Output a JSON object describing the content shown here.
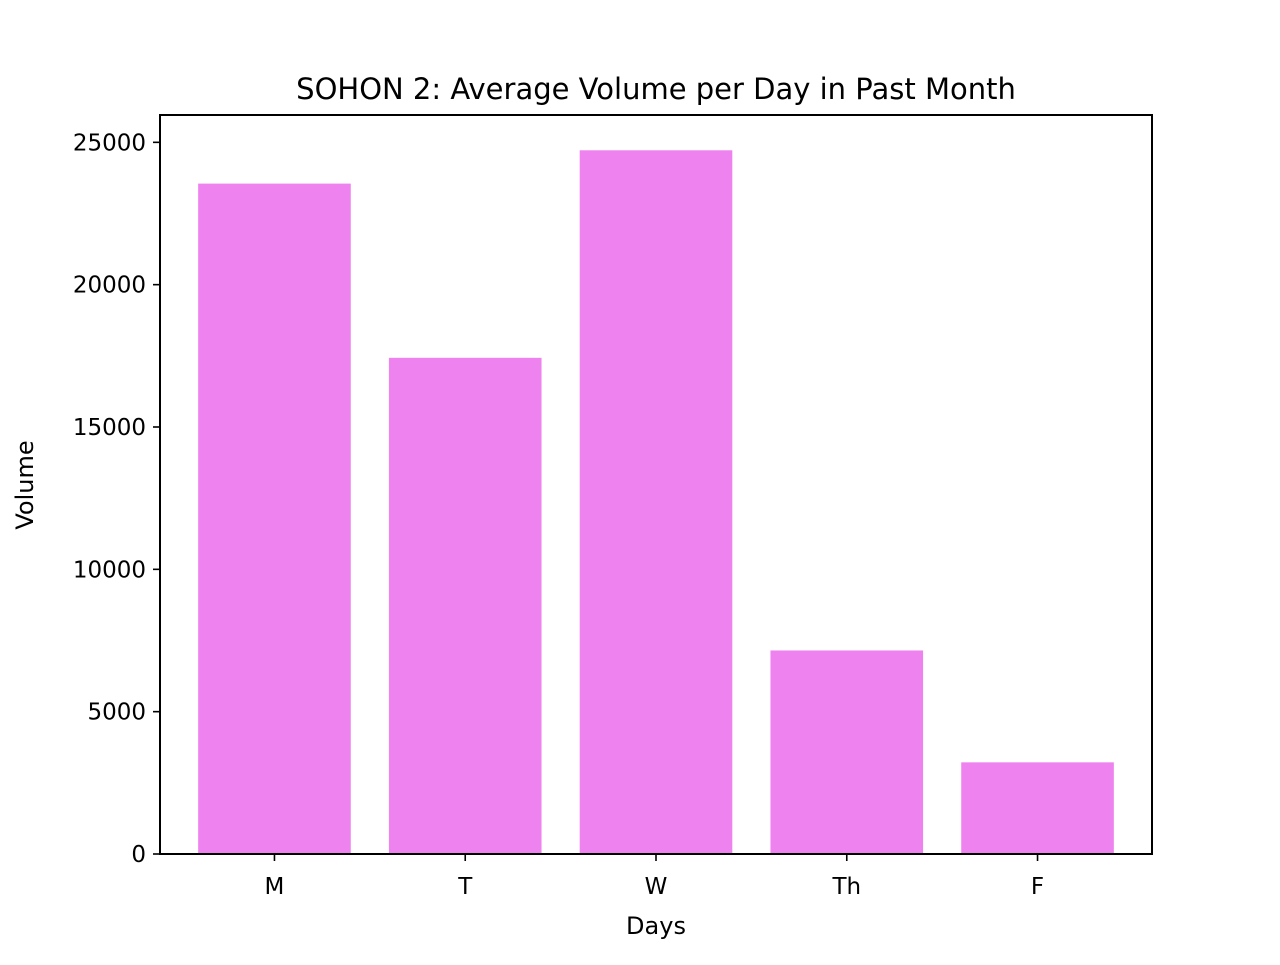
{
  "chart_data": {
    "type": "bar",
    "title": "SOHON 2: Average Volume per Day in Past Month",
    "xlabel": "Days",
    "ylabel": "Volume",
    "categories": [
      "M",
      "T",
      "W",
      "Th",
      "F"
    ],
    "values": [
      23550,
      17430,
      24720,
      7150,
      3220
    ],
    "ylim": [
      0,
      25960
    ],
    "yticks": [
      0,
      5000,
      10000,
      15000,
      20000,
      25000
    ],
    "bar_color": "#ee82ee",
    "grid": false,
    "legend": "none"
  }
}
